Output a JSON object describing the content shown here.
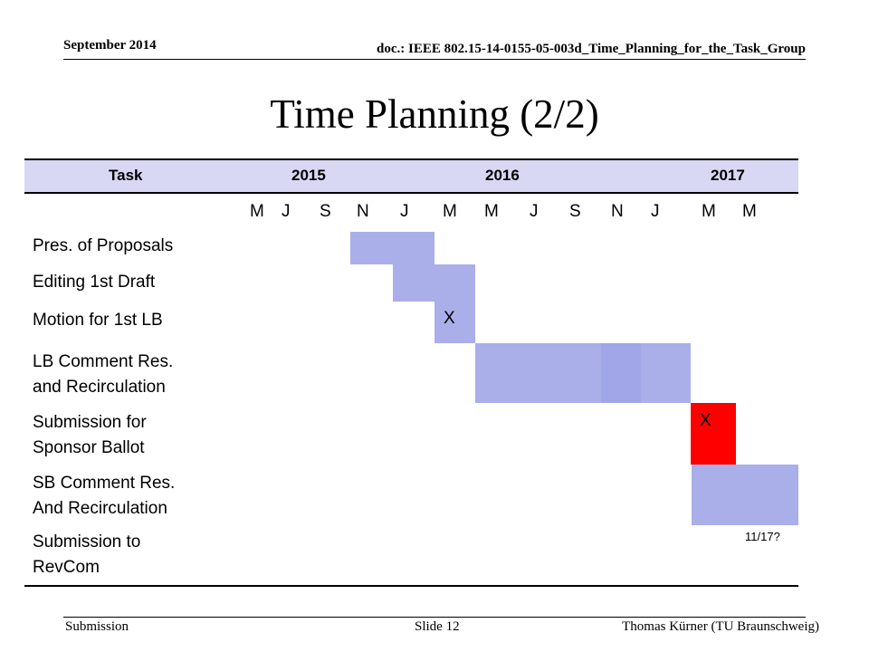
{
  "header": {
    "date": "September 2014",
    "doc": "doc.: IEEE 802.15-14-0155-05-003d_Time_Planning_for_the_Task_Group"
  },
  "title": "Time Planning (2/2)",
  "table": {
    "headers": [
      "Task",
      "2015",
      "2016",
      "2017"
    ],
    "months": [
      "M",
      "J",
      "S",
      "N",
      "J",
      "M",
      "M",
      "J",
      "S",
      "N",
      "J",
      "M",
      "M"
    ],
    "tasks": [
      {
        "line1": "Pres. of Proposals",
        "line2": ""
      },
      {
        "line1": "Editing 1st Draft",
        "line2": ""
      },
      {
        "line1": "Motion for 1st LB",
        "line2": "",
        "mark": "X"
      },
      {
        "line1": "LB Comment Res.",
        "line2": "and Recirculation"
      },
      {
        "line1": "Submission for",
        "line2": "Sponsor Ballot",
        "mark": "X"
      },
      {
        "line1": "SB Comment Res.",
        "line2": "And Recirculation"
      },
      {
        "line1": "Submission to",
        "line2": "RevCom",
        "note": "11/17?"
      }
    ]
  },
  "colors": {
    "header_band": "#d8d8f4",
    "bar": "#aaaee9",
    "bar_dark": "#a0a6e8",
    "milestone": "#ff0000"
  },
  "footer": {
    "left": "Submission",
    "center": "Slide 12",
    "right": "Thomas Kürner (TU Braunschweig)"
  }
}
